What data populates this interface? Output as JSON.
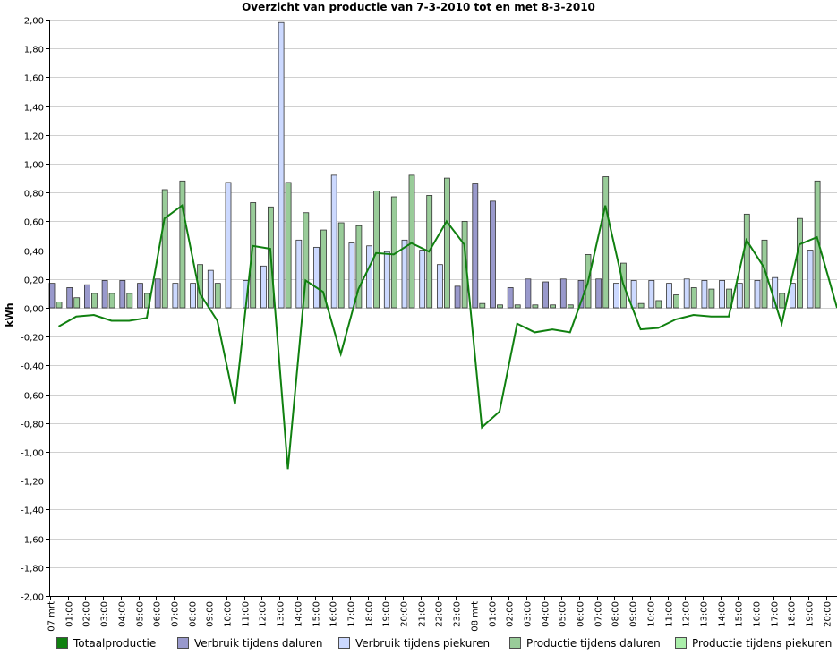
{
  "chart_data": {
    "type": "bar",
    "title": "Overzicht van productie van 7-3-2010 tot en met 8-3-2010",
    "xlabel": "",
    "ylabel": "kWh",
    "ylim": [
      -2.0,
      2.0
    ],
    "grid": true,
    "legend_position": "bottom",
    "y_ticks": [
      "2,00",
      "1,80",
      "1,60",
      "1,40",
      "1,20",
      "1,00",
      "0,80",
      "0,60",
      "0,40",
      "0,20",
      "0,00",
      "-0,20",
      "-0,40",
      "-0,60",
      "-0,80",
      "-1,00",
      "-1,20",
      "-1,40",
      "-1,60",
      "-1,80",
      "-2,00"
    ],
    "categories": [
      "07 mrt",
      "01:00",
      "02:00",
      "03:00",
      "04:00",
      "05:00",
      "06:00",
      "07:00",
      "08:00",
      "09:00",
      "10:00",
      "11:00",
      "12:00",
      "13:00",
      "14:00",
      "15:00",
      "16:00",
      "17:00",
      "18:00",
      "19:00",
      "20:00",
      "21:00",
      "22:00",
      "23:00",
      "08 mrt",
      "01:00",
      "02:00",
      "03:00",
      "04:00",
      "05:00",
      "06:00",
      "07:00",
      "08:00",
      "09:00",
      "10:00",
      "11:00",
      "12:00",
      "13:00",
      "14:00",
      "15:00",
      "16:00",
      "17:00",
      "18:00",
      "19:00",
      "20:00"
    ],
    "series": [
      {
        "name": "Totaalproductie",
        "type": "line",
        "color": "#108010",
        "values": [
          -0.13,
          -0.06,
          -0.05,
          -0.09,
          -0.09,
          -0.07,
          0.62,
          0.71,
          0.1,
          -0.09,
          -0.67,
          0.43,
          0.41,
          -1.12,
          0.19,
          0.11,
          -0.32,
          0.13,
          0.38,
          0.37,
          0.45,
          0.39,
          0.6,
          0.44,
          -0.83,
          -0.72,
          -0.11,
          -0.17,
          -0.15,
          -0.17,
          0.17,
          0.71,
          0.17,
          -0.15,
          -0.14,
          -0.08,
          -0.05,
          -0.06,
          -0.06,
          0.47,
          0.28,
          -0.11,
          0.44,
          0.49,
          0.0
        ]
      },
      {
        "name": "Verbruik tijdens daluren",
        "color": "#9999cc",
        "values": [
          0.17,
          0.14,
          0.16,
          0.19,
          0.19,
          0.17,
          0.2,
          0.0,
          0.0,
          0.0,
          0.0,
          0.0,
          0.0,
          0.0,
          0.0,
          0.0,
          0.0,
          0.0,
          0.0,
          0.0,
          0.0,
          0.0,
          0.0,
          0.15,
          0.86,
          0.74,
          0.14,
          0.2,
          0.18,
          0.2,
          0.19,
          0.2,
          0.0,
          0.0,
          0.0,
          0.0,
          0.0,
          0.0,
          0.0,
          0.0,
          0.0,
          0.0,
          0.0,
          0.0,
          0.0
        ]
      },
      {
        "name": "Verbruik tijdens piekuren",
        "color": "#ccd9ff",
        "values": [
          0.0,
          0.0,
          0.0,
          0.0,
          0.0,
          0.0,
          0.0,
          0.17,
          0.17,
          0.26,
          0.87,
          0.19,
          0.29,
          1.98,
          0.47,
          0.42,
          0.92,
          0.45,
          0.43,
          0.39,
          0.47,
          0.4,
          0.3,
          0.0,
          0.0,
          0.0,
          0.0,
          0.0,
          0.0,
          0.0,
          0.0,
          0.0,
          0.17,
          0.19,
          0.19,
          0.17,
          0.2,
          0.19,
          0.19,
          0.17,
          0.19,
          0.21,
          0.17,
          0.4,
          0.0
        ]
      },
      {
        "name": "Productie tijdens daluren",
        "color": "#99cc99",
        "values": [
          0.04,
          0.07,
          0.1,
          0.1,
          0.1,
          0.1,
          0.82,
          0.88,
          0.3,
          0.17,
          0.0,
          0.73,
          0.7,
          0.87,
          0.66,
          0.54,
          0.59,
          0.57,
          0.81,
          0.77,
          0.92,
          0.78,
          0.9,
          0.6,
          0.03,
          0.02,
          0.02,
          0.02,
          0.02,
          0.02,
          0.37,
          0.91,
          0.31,
          0.03,
          0.05,
          0.09,
          0.14,
          0.13,
          0.13,
          0.65,
          0.47,
          0.1,
          0.62,
          0.88,
          0.0
        ]
      },
      {
        "name": "Productie tijdens piekuren",
        "color": "#aaeeaa",
        "values": [
          0,
          0,
          0,
          0,
          0,
          0,
          0,
          0,
          0,
          0,
          0,
          0,
          0,
          0,
          0,
          0,
          0,
          0,
          0,
          0,
          0,
          0,
          0,
          0,
          0,
          0,
          0,
          0,
          0,
          0,
          0,
          0,
          0,
          0,
          0,
          0,
          0,
          0,
          0,
          0,
          0,
          0,
          0,
          0,
          0
        ]
      }
    ]
  }
}
